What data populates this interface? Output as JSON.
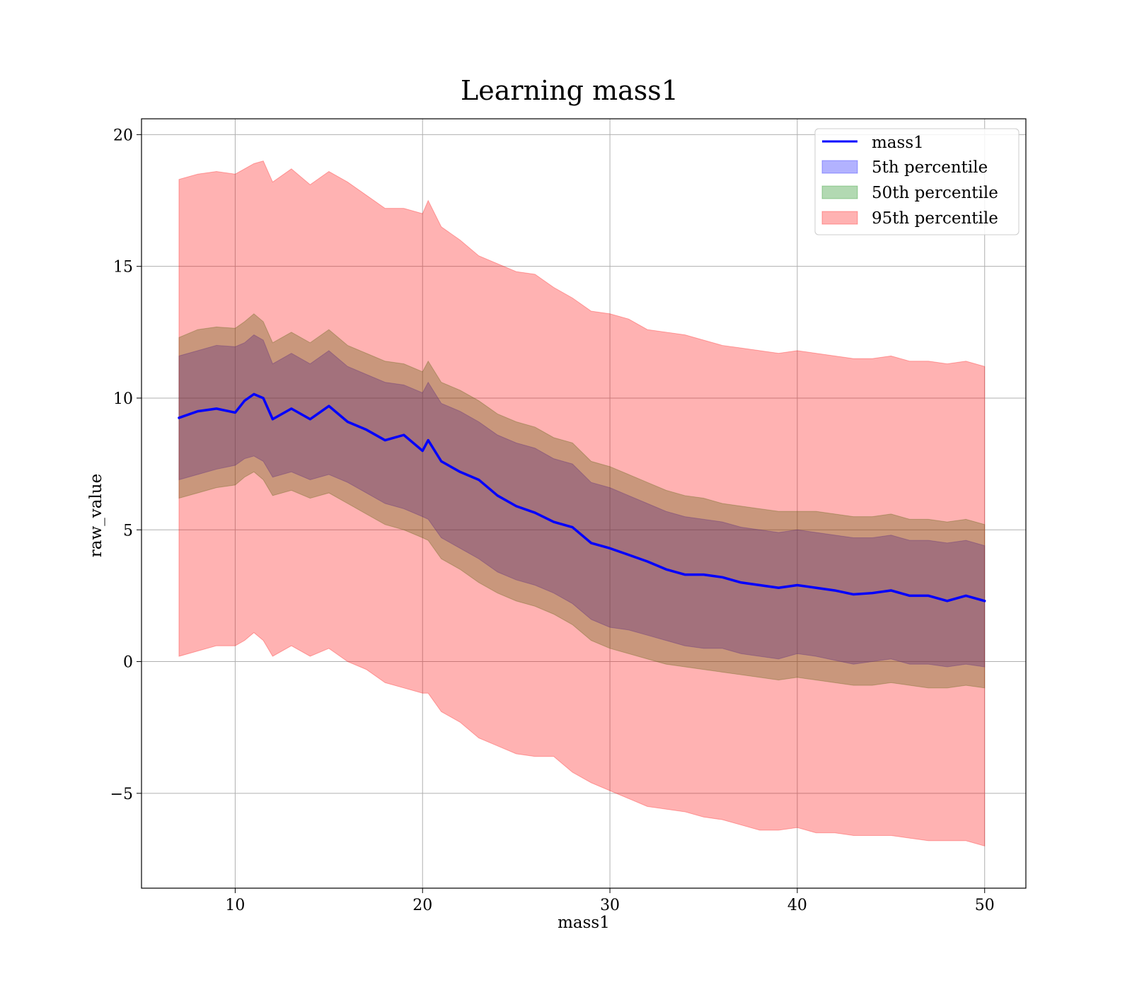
{
  "chart_data": {
    "type": "area",
    "title": "Learning mass1",
    "xlabel": "mass1",
    "ylabel": "raw_value",
    "xlim": [
      5,
      52.2
    ],
    "ylim": [
      -8.6,
      20.6
    ],
    "xticks": [
      10,
      20,
      30,
      40,
      50
    ],
    "xtick_labels": [
      "10",
      "20",
      "30",
      "40",
      "50"
    ],
    "yticks": [
      -5,
      0,
      5,
      10,
      15,
      20
    ],
    "ytick_labels": [
      "−5",
      "0",
      "5",
      "10",
      "15",
      "20"
    ],
    "grid": true,
    "legend_position": "top-right",
    "x": [
      7,
      8,
      9,
      10,
      10.5,
      11,
      11.5,
      12,
      13,
      14,
      15,
      16,
      17,
      18,
      19,
      20,
      20.3,
      21,
      22,
      23,
      24,
      25,
      26,
      27,
      28,
      29,
      30,
      31,
      32,
      33,
      34,
      35,
      36,
      37,
      38,
      39,
      40,
      41,
      42,
      43,
      44,
      45,
      46,
      47,
      48,
      49,
      50
    ],
    "series": [
      {
        "name": "mass1",
        "kind": "line",
        "color": "#0000ff",
        "values": [
          9.25,
          9.5,
          9.6,
          9.45,
          9.9,
          10.15,
          10.0,
          9.2,
          9.6,
          9.2,
          9.7,
          9.1,
          8.8,
          8.4,
          8.6,
          8.0,
          8.4,
          7.6,
          7.2,
          6.9,
          6.3,
          5.9,
          5.65,
          5.3,
          5.1,
          4.5,
          4.3,
          4.05,
          3.8,
          3.5,
          3.3,
          3.3,
          3.2,
          3.0,
          2.9,
          2.8,
          2.9,
          2.8,
          2.7,
          2.55,
          2.6,
          2.7,
          2.5,
          2.5,
          2.3,
          2.5,
          2.3
        ]
      },
      {
        "name": "5th percentile",
        "kind": "band",
        "color": "#0000ff",
        "lower": [
          6.9,
          7.1,
          7.3,
          7.45,
          7.7,
          7.8,
          7.6,
          7.0,
          7.2,
          6.9,
          7.1,
          6.8,
          6.4,
          6.0,
          5.8,
          5.5,
          5.4,
          4.7,
          4.3,
          3.9,
          3.4,
          3.1,
          2.9,
          2.6,
          2.2,
          1.6,
          1.3,
          1.2,
          1.0,
          0.8,
          0.6,
          0.5,
          0.5,
          0.3,
          0.2,
          0.1,
          0.3,
          0.2,
          0.05,
          -0.1,
          0.0,
          0.1,
          -0.1,
          -0.1,
          -0.2,
          -0.1,
          -0.2
        ],
        "upper": [
          11.6,
          11.8,
          12.0,
          11.95,
          12.1,
          12.4,
          12.2,
          11.3,
          11.7,
          11.3,
          11.8,
          11.2,
          10.9,
          10.6,
          10.5,
          10.2,
          10.6,
          9.8,
          9.5,
          9.1,
          8.6,
          8.3,
          8.1,
          7.7,
          7.5,
          6.8,
          6.6,
          6.3,
          6.0,
          5.7,
          5.5,
          5.4,
          5.3,
          5.1,
          5.0,
          4.9,
          5.0,
          4.9,
          4.8,
          4.7,
          4.7,
          4.8,
          4.6,
          4.6,
          4.5,
          4.6,
          4.4
        ]
      },
      {
        "name": "50th percentile",
        "kind": "band",
        "color": "#008000",
        "lower": [
          6.2,
          6.4,
          6.6,
          6.7,
          7.0,
          7.2,
          6.9,
          6.3,
          6.5,
          6.2,
          6.4,
          6.0,
          5.6,
          5.2,
          5.0,
          4.7,
          4.6,
          3.9,
          3.5,
          3.0,
          2.6,
          2.3,
          2.1,
          1.8,
          1.4,
          0.8,
          0.5,
          0.3,
          0.1,
          -0.1,
          -0.2,
          -0.3,
          -0.4,
          -0.5,
          -0.6,
          -0.7,
          -0.6,
          -0.7,
          -0.8,
          -0.9,
          -0.9,
          -0.8,
          -0.9,
          -1.0,
          -1.0,
          -0.9,
          -1.0
        ],
        "upper": [
          12.3,
          12.6,
          12.7,
          12.65,
          12.9,
          13.2,
          12.9,
          12.1,
          12.5,
          12.1,
          12.6,
          12.0,
          11.7,
          11.4,
          11.3,
          11.0,
          11.4,
          10.6,
          10.3,
          9.9,
          9.4,
          9.1,
          8.9,
          8.5,
          8.3,
          7.6,
          7.4,
          7.1,
          6.8,
          6.5,
          6.3,
          6.2,
          6.0,
          5.9,
          5.8,
          5.7,
          5.7,
          5.7,
          5.6,
          5.5,
          5.5,
          5.6,
          5.4,
          5.4,
          5.3,
          5.4,
          5.2
        ]
      },
      {
        "name": "95th percentile",
        "kind": "band",
        "color": "#ff0000",
        "lower": [
          0.2,
          0.4,
          0.6,
          0.6,
          0.8,
          1.1,
          0.8,
          0.2,
          0.6,
          0.2,
          0.5,
          0.0,
          -0.3,
          -0.8,
          -1.0,
          -1.2,
          -1.2,
          -1.9,
          -2.3,
          -2.9,
          -3.2,
          -3.5,
          -3.6,
          -3.6,
          -4.2,
          -4.6,
          -4.9,
          -5.2,
          -5.5,
          -5.6,
          -5.7,
          -5.9,
          -6.0,
          -6.2,
          -6.4,
          -6.4,
          -6.3,
          -6.5,
          -6.5,
          -6.6,
          -6.6,
          -6.6,
          -6.7,
          -6.8,
          -6.8,
          -6.8,
          -7.0
        ],
        "upper": [
          18.3,
          18.5,
          18.6,
          18.5,
          18.7,
          18.9,
          19.0,
          18.2,
          18.7,
          18.1,
          18.6,
          18.2,
          17.7,
          17.2,
          17.2,
          17.0,
          17.5,
          16.5,
          16.0,
          15.4,
          15.1,
          14.8,
          14.7,
          14.2,
          13.8,
          13.3,
          13.2,
          13.0,
          12.6,
          12.5,
          12.4,
          12.2,
          12.0,
          11.9,
          11.8,
          11.7,
          11.8,
          11.7,
          11.6,
          11.5,
          11.5,
          11.6,
          11.4,
          11.4,
          11.3,
          11.4,
          11.2
        ]
      }
    ]
  }
}
